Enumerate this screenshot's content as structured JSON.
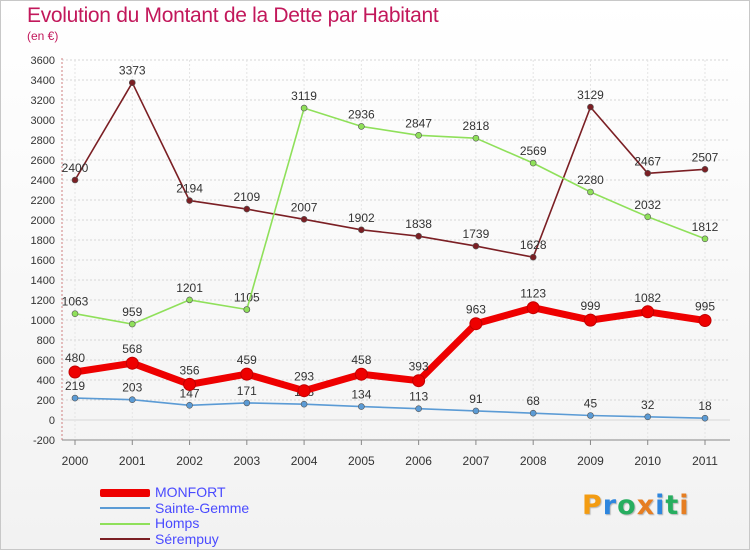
{
  "header": {
    "title": "Evolution du Montant de la Dette par Habitant",
    "subtitle": "(en €)"
  },
  "brand": {
    "letters": [
      "P",
      "r",
      "o",
      "x",
      "i",
      "t",
      "i"
    ],
    "colors": [
      "#f39c12",
      "#2e86de",
      "#27ae60",
      "#e67e22",
      "#2e86de",
      "#27ae60",
      "#e67e22"
    ]
  },
  "chart_data": {
    "type": "line",
    "title": "Evolution du Montant de la Dette par Habitant",
    "subtitle": "(en €)",
    "x": [
      "2000",
      "2001",
      "2002",
      "2003",
      "2004",
      "2005",
      "2006",
      "2007",
      "2008",
      "2009",
      "2010",
      "2011"
    ],
    "ylim": [
      -200,
      3600
    ],
    "yticks": [
      -200,
      0,
      200,
      400,
      600,
      800,
      1000,
      1200,
      1400,
      1600,
      1800,
      2000,
      2200,
      2400,
      2600,
      2800,
      3000,
      3200,
      3400,
      3600
    ],
    "grid": true,
    "legend_position": "bottom-left",
    "series": [
      {
        "name": "Sérempuy",
        "color": "#7b1f24",
        "values": [
          2400,
          3373,
          2194,
          2109,
          2007,
          1902,
          1838,
          1739,
          1628,
          3129,
          2467,
          2507
        ],
        "labels": [
          "2400",
          "3373",
          "2194",
          "2109",
          "2007",
          "1902",
          "1838",
          "1739",
          "1628",
          "3129",
          "2467",
          "2507"
        ]
      },
      {
        "name": "Homps",
        "color": "#8fe05a",
        "values": [
          1063,
          959,
          1201,
          1105,
          null,
          null,
          null,
          null,
          null,
          null,
          null,
          null
        ],
        "labels": [
          "1063",
          "959",
          "1201",
          "1105",
          "",
          "",
          "",
          "",
          "",
          "",
          "",
          ""
        ]
      },
      {
        "name": "Homps",
        "color": "#8fe05a",
        "values": [
          null,
          null,
          null,
          1105,
          3119,
          2936,
          2847,
          2818,
          2569,
          2280,
          2032,
          1812
        ],
        "labels": [
          "",
          "",
          "",
          "",
          "3119",
          "2936",
          "2847",
          "2818",
          "2569",
          "2280",
          "2032",
          "1812"
        ]
      },
      {
        "name": "Sainte-Gemme",
        "color": "#5b9bd5",
        "values": [
          219,
          203,
          147,
          171,
          158,
          134,
          113,
          91,
          68,
          45,
          32,
          18
        ],
        "labels": [
          "219",
          "203",
          "147",
          "171",
          "158",
          "134",
          "113",
          "91",
          "68",
          "45",
          "32",
          "18"
        ]
      },
      {
        "name": "MONFORT",
        "color": "#ee0000",
        "values": [
          480,
          568,
          356,
          459,
          293,
          458,
          393,
          963,
          1123,
          999,
          1082,
          995
        ],
        "labels": [
          "480",
          "568",
          "356",
          "459",
          "293",
          "458",
          "393",
          "963",
          "1123",
          "999",
          "1082",
          "995"
        ]
      }
    ],
    "legend": [
      {
        "name": "MONFORT",
        "color": "#ee0000"
      },
      {
        "name": "Sainte-Gemme",
        "color": "#5b9bd5"
      },
      {
        "name": "Homps",
        "color": "#8fe05a"
      },
      {
        "name": "Sérempuy",
        "color": "#7b1f24"
      }
    ]
  }
}
